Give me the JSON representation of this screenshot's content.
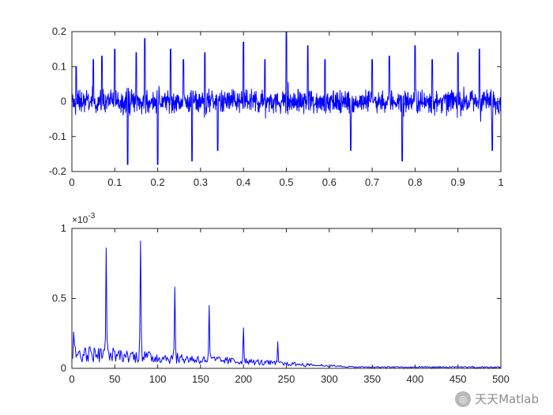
{
  "watermark": {
    "text": "天天Matlab",
    "icon": "wechat-icon"
  },
  "chart_data": [
    {
      "type": "line",
      "title": "",
      "xlabel": "",
      "ylabel": "",
      "xlim": [
        0,
        1
      ],
      "ylim": [
        -0.2,
        0.2
      ],
      "x_ticks": [
        "0",
        "0.1",
        "0.2",
        "0.3",
        "0.4",
        "0.5",
        "0.6",
        "0.7",
        "0.8",
        "0.9",
        "1"
      ],
      "y_ticks": [
        "-0.2",
        "-0.1",
        "0",
        "0.1",
        "0.2"
      ],
      "grid": false,
      "color": "#0000ff",
      "description_points": {
        "x": [
          0.01,
          0.05,
          0.07,
          0.1,
          0.13,
          0.15,
          0.17,
          0.2,
          0.23,
          0.26,
          0.28,
          0.31,
          0.34,
          0.4,
          0.45,
          0.5,
          0.55,
          0.59,
          0.65,
          0.7,
          0.74,
          0.77,
          0.8,
          0.84,
          0.9,
          0.95,
          0.98
        ],
        "y": [
          0.1,
          0.12,
          0.13,
          0.15,
          -0.18,
          0.14,
          0.18,
          -0.18,
          0.15,
          0.12,
          -0.17,
          0.14,
          -0.14,
          0.17,
          0.12,
          0.2,
          0.16,
          0.12,
          -0.14,
          0.12,
          0.13,
          -0.17,
          0.16,
          0.12,
          0.14,
          0.15,
          -0.14
        ]
      }
    },
    {
      "type": "line",
      "title": "",
      "xlabel": "",
      "ylabel": "",
      "exponent": "×10",
      "exponent_power": "-3",
      "xlim": [
        0,
        500
      ],
      "ylim": [
        0,
        1
      ],
      "x_ticks": [
        "0",
        "50",
        "100",
        "150",
        "200",
        "250",
        "300",
        "350",
        "400",
        "450",
        "500"
      ],
      "y_ticks": [
        "0",
        "0.5",
        "1"
      ],
      "grid": false,
      "color": "#0000ff",
      "peaks": {
        "x": [
          2,
          40,
          80,
          120,
          160,
          200,
          240
        ],
        "y": [
          0.26,
          0.86,
          0.91,
          0.58,
          0.45,
          0.29,
          0.19
        ]
      }
    }
  ]
}
